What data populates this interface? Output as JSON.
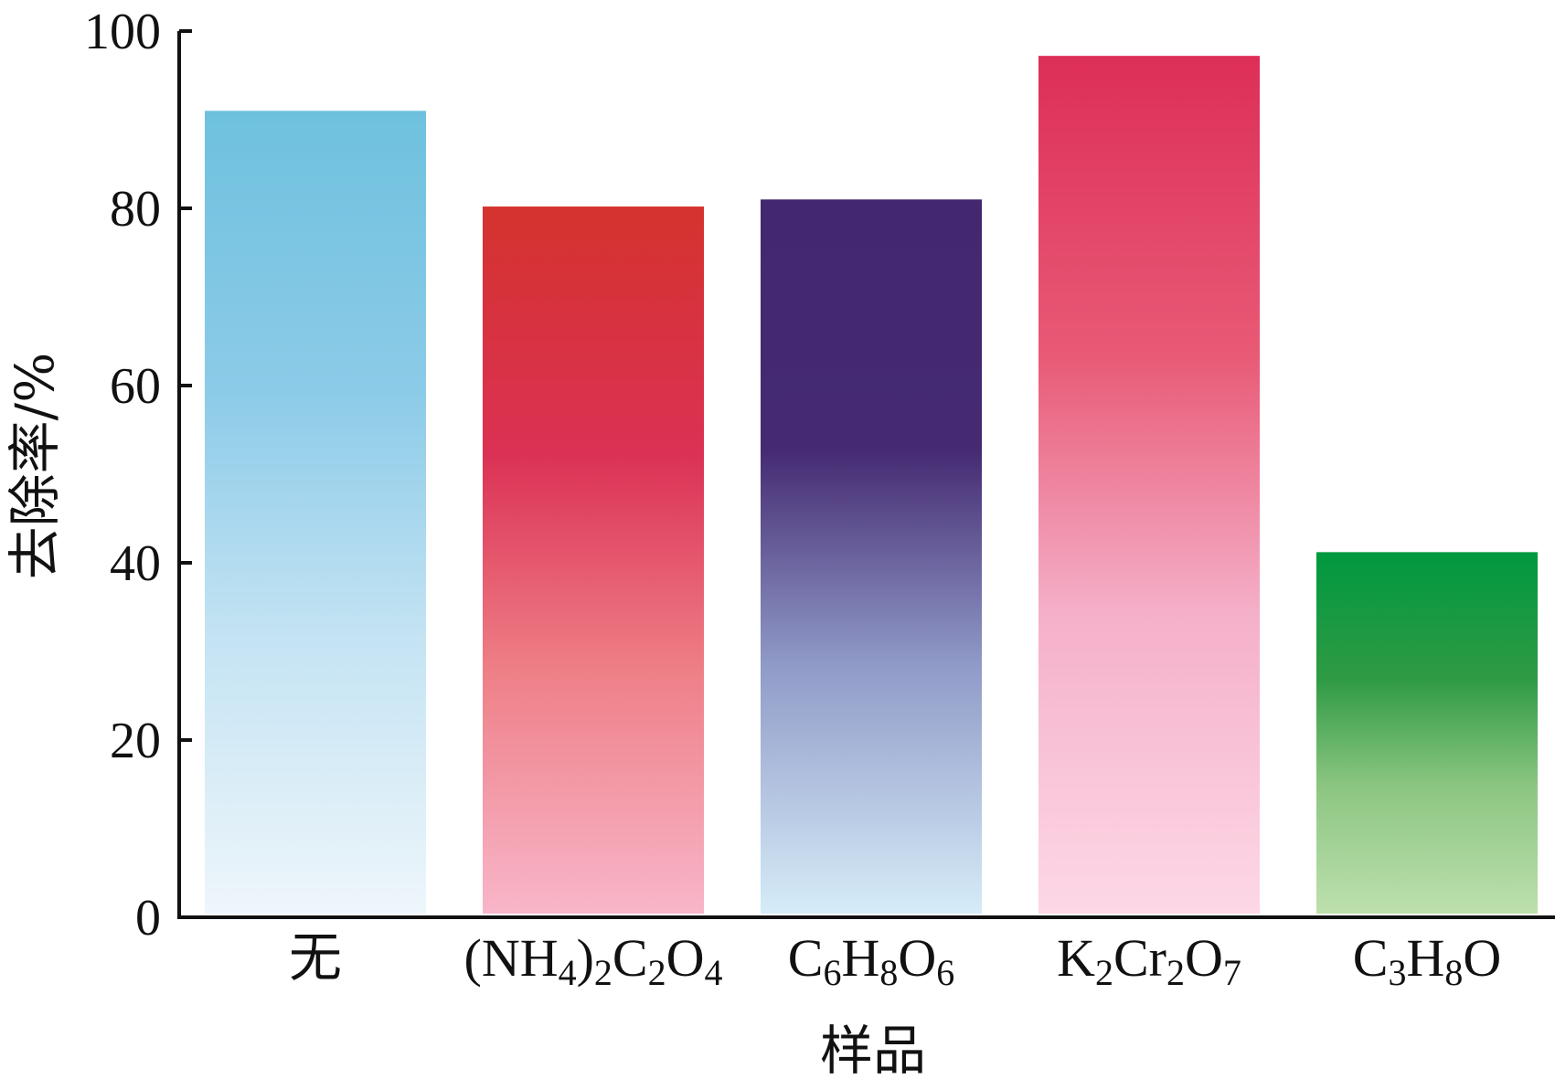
{
  "chart_data": {
    "type": "bar",
    "title": "",
    "xlabel": "样品",
    "ylabel": "去除率/%",
    "ylim": [
      0,
      100
    ],
    "yticks": [
      0,
      20,
      40,
      60,
      80,
      100
    ],
    "grid": false,
    "categories": [
      {
        "text": "无",
        "parts": [
          {
            "t": "无"
          }
        ]
      },
      {
        "text": "(NH4)2C2O4",
        "parts": [
          {
            "t": "(NH"
          },
          {
            "t": "4",
            "sub": true
          },
          {
            "t": ")"
          },
          {
            "t": "2",
            "sub": true
          },
          {
            "t": "C"
          },
          {
            "t": "2",
            "sub": true
          },
          {
            "t": "O"
          },
          {
            "t": "4",
            "sub": true
          }
        ]
      },
      {
        "text": "C6H8O6",
        "parts": [
          {
            "t": "C"
          },
          {
            "t": "6",
            "sub": true
          },
          {
            "t": "H"
          },
          {
            "t": "8",
            "sub": true
          },
          {
            "t": "O"
          },
          {
            "t": "6",
            "sub": true
          }
        ]
      },
      {
        "text": "K2Cr2O7",
        "parts": [
          {
            "t": "K"
          },
          {
            "t": "2",
            "sub": true
          },
          {
            "t": "Cr"
          },
          {
            "t": "2",
            "sub": true
          },
          {
            "t": "O"
          },
          {
            "t": "7",
            "sub": true
          }
        ]
      },
      {
        "text": "C3H8O",
        "parts": [
          {
            "t": "C"
          },
          {
            "t": "3",
            "sub": true
          },
          {
            "t": "H"
          },
          {
            "t": "8",
            "sub": true
          },
          {
            "t": "O"
          }
        ]
      }
    ],
    "values": [
      91,
      80.2,
      81,
      97.2,
      41.2
    ],
    "bar_gradients": [
      [
        "#6ec1de",
        "#8ccbe8",
        "#c3e3f3",
        "#eef6fb"
      ],
      [
        "#d4332e",
        "#db3154",
        "#ee7e86",
        "#f8b6c9"
      ],
      [
        "#432870",
        "#452a72",
        "#8f9ac7",
        "#d6ecf8"
      ],
      [
        "#dd2e58",
        "#e85a76",
        "#f5b0c9",
        "#fdd8e6"
      ],
      [
        "#00993f",
        "#2f9a44",
        "#8cc682",
        "#bde0ad"
      ]
    ]
  }
}
